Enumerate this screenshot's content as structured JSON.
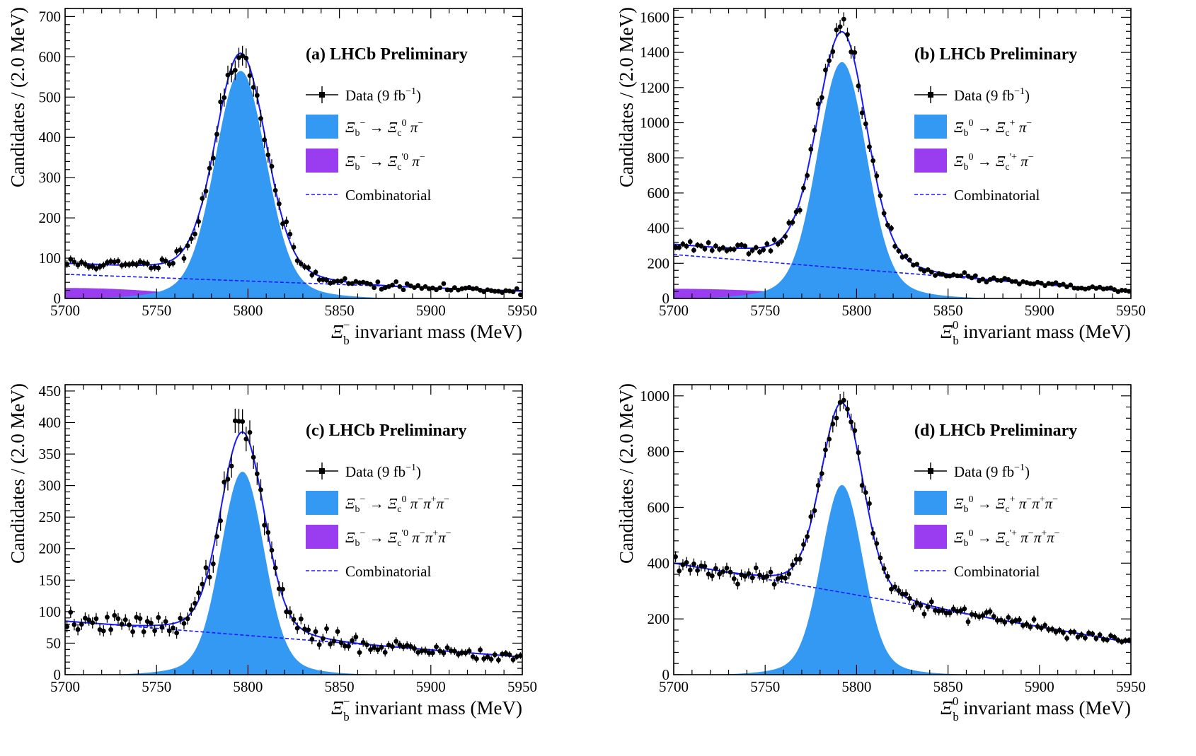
{
  "colors": {
    "signal": "#3399f3",
    "partial": "#9a3cf0",
    "total": "#1a1aff",
    "combinatorial": "#1a1aff",
    "data": "#000000"
  },
  "legend_common": {
    "data_label": "Data (9 fb",
    "data_label_sup": "−1",
    "data_label_end": ")",
    "combinatorial_label": "Combinatorial",
    "arrow": "→"
  },
  "chart_data": [
    {
      "id": "a",
      "type": "histogram-fit",
      "title": "(a)  LHCb Preliminary",
      "ylabel": "Candidates / (2.0 MeV)",
      "xlabel_symbol": "Ξ",
      "xlabel_sub": "b",
      "xlabel_sup": "−",
      "xlabel_text": " invariant mass (MeV)",
      "xlim": [
        5700,
        5950
      ],
      "ylim": [
        0,
        720
      ],
      "xticks": [
        5700,
        5750,
        5800,
        5850,
        5900,
        5950
      ],
      "yticks": [
        0,
        100,
        200,
        300,
        400,
        500,
        600,
        700
      ],
      "signal": {
        "mean": 5796,
        "sigma": 13.5,
        "peak": 565
      },
      "combinatorial": {
        "at_min": 60,
        "at_max": 18
      },
      "partial": {
        "level": 26,
        "end": 5775
      },
      "show_partial": true,
      "points_seed": 11,
      "legend": {
        "signal": "Ξ_b^− → Ξ_c^0 π^−",
        "partial": "Ξ_b^− → Ξ_c^'0 π^−"
      }
    },
    {
      "id": "b",
      "type": "histogram-fit",
      "title": "(b)  LHCb Preliminary",
      "ylabel": "Candidates / (2.0 MeV)",
      "xlabel_symbol": "Ξ",
      "xlabel_sub": "b",
      "xlabel_sup": "0",
      "xlabel_text": " invariant mass (MeV)",
      "xlim": [
        5700,
        5950
      ],
      "ylim": [
        0,
        1650
      ],
      "xticks": [
        5700,
        5750,
        5800,
        5850,
        5900,
        5950
      ],
      "yticks": [
        0,
        200,
        400,
        600,
        800,
        1000,
        1200,
        1400,
        1600
      ],
      "signal": {
        "mean": 5792,
        "sigma": 13,
        "peak": 1345
      },
      "combinatorial": {
        "at_min": 250,
        "at_max": 40
      },
      "partial": {
        "level": 55,
        "end": 5785
      },
      "show_partial": true,
      "points_seed": 23,
      "legend": {
        "signal": "Ξ_b^0 → Ξ_c^+ π^−",
        "partial": "Ξ_b^0 → Ξ_c^'+ π^−"
      }
    },
    {
      "id": "c",
      "type": "histogram-fit",
      "title": "(c)  LHCb Preliminary",
      "ylabel": "Candidates / (2.0 MeV)",
      "xlabel_symbol": "Ξ",
      "xlabel_sub": "b",
      "xlabel_sup": "−",
      "xlabel_text": " invariant mass (MeV)",
      "xlim": [
        5700,
        5950
      ],
      "ylim": [
        0,
        460
      ],
      "xticks": [
        5700,
        5750,
        5800,
        5850,
        5900,
        5950
      ],
      "yticks": [
        0,
        50,
        100,
        150,
        200,
        250,
        300,
        350,
        400,
        450
      ],
      "signal": {
        "mean": 5797,
        "sigma": 11.5,
        "peak": 322
      },
      "combinatorial": {
        "at_min": 85,
        "at_max": 28
      },
      "partial": {
        "level": 0,
        "end": 5700
      },
      "show_partial": false,
      "points_seed": 37,
      "legend": {
        "signal": "Ξ_b^− → Ξ_c^0 π^−π^+π^−",
        "partial": "Ξ_b^− → Ξ_c^'0 π^−π^+π^−"
      }
    },
    {
      "id": "d",
      "type": "histogram-fit",
      "title": "(d)  LHCb Preliminary",
      "ylabel": "Candidates / (2.0 MeV)",
      "xlabel_symbol": "Ξ",
      "xlabel_sub": "b",
      "xlabel_sup": "0",
      "xlabel_text": " invariant mass (MeV)",
      "xlim": [
        5700,
        5950
      ],
      "ylim": [
        0,
        1040
      ],
      "xticks": [
        5700,
        5750,
        5800,
        5850,
        5900,
        5950
      ],
      "yticks": [
        0,
        200,
        400,
        600,
        800,
        1000
      ],
      "signal": {
        "mean": 5792,
        "sigma": 11,
        "peak": 680
      },
      "combinatorial": {
        "at_min": 400,
        "at_max": 115
      },
      "partial": {
        "level": 0,
        "end": 5700
      },
      "show_partial": false,
      "points_seed": 53,
      "legend": {
        "signal": "Ξ_b^0 → Ξ_c^+ π^−π^+π^−",
        "partial": "Ξ_b^0 → Ξ_c^'+ π^−π^+π^−"
      }
    }
  ]
}
